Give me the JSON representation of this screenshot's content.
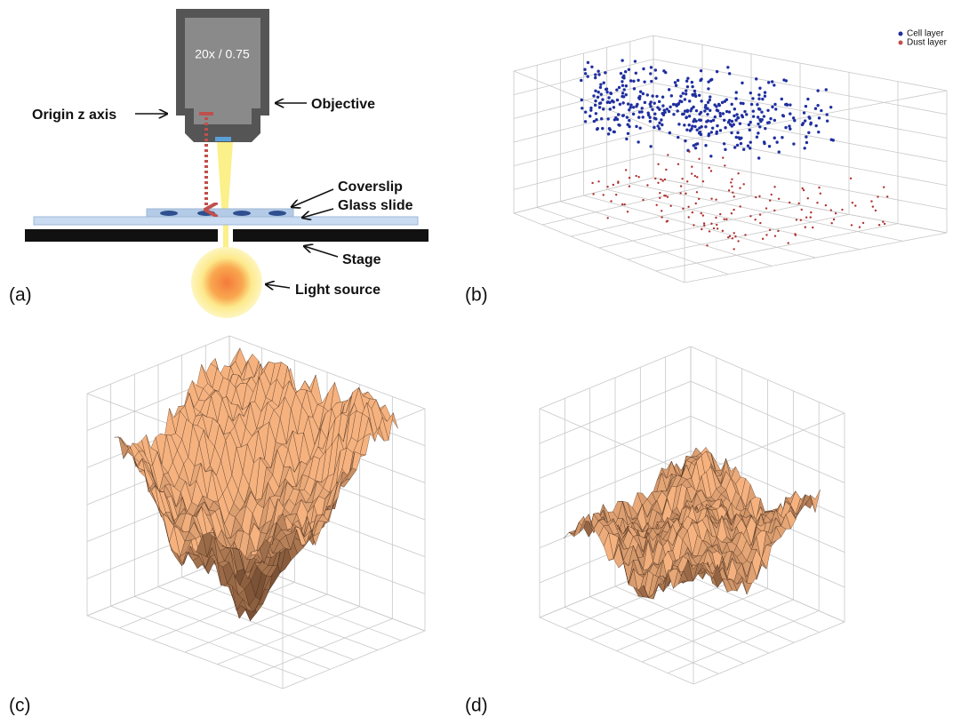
{
  "panel_a": {
    "label": "(a)",
    "objective_spec": "20x / 0.75",
    "callouts": {
      "origin": "Origin z axis",
      "objective": "Objective",
      "coverslip": "Coverslip",
      "glass_slide": "Glass slide",
      "stage": "Stage",
      "light_source": "Light source"
    }
  },
  "panel_b": {
    "label": "(b)",
    "legend": [
      "Cell layer",
      "Dust layer"
    ]
  },
  "panel_c": {
    "label": "(c)"
  },
  "panel_d": {
    "label": "(d)"
  }
}
